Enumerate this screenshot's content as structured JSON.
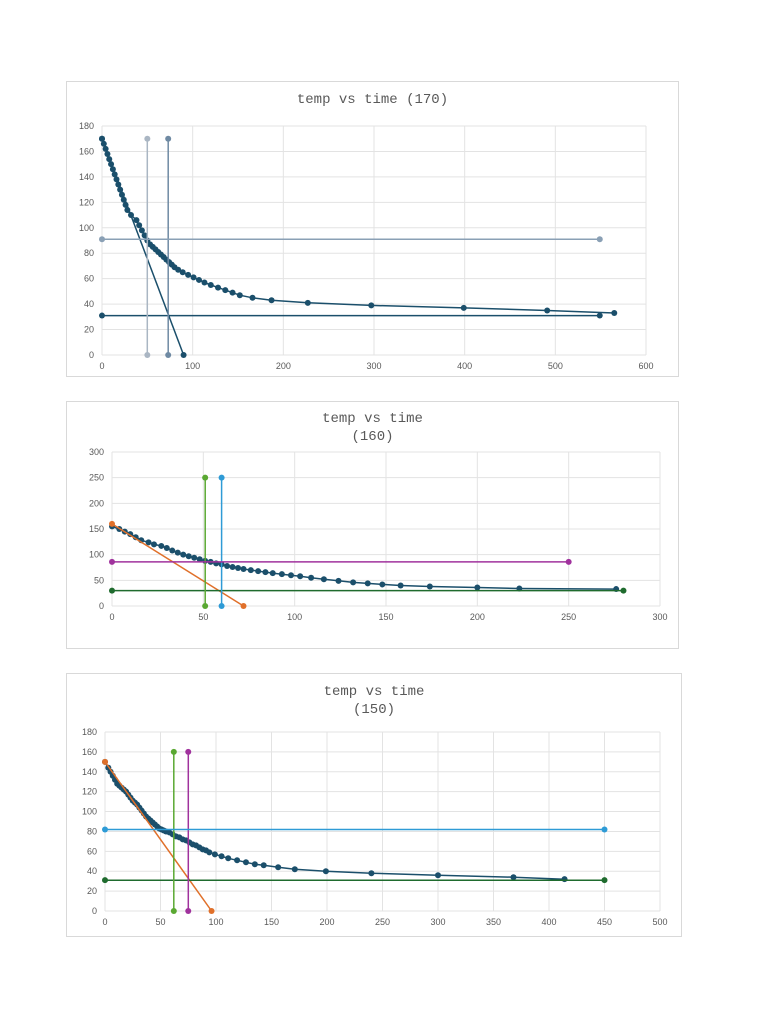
{
  "chart_data": [
    {
      "type": "scatter",
      "title_lines": [
        "temp vs time (170)"
      ],
      "xlim": [
        0,
        600
      ],
      "ylim": [
        0,
        180
      ],
      "xticks": [
        0,
        100,
        200,
        300,
        400,
        500,
        600
      ],
      "yticks": [
        0,
        20,
        40,
        60,
        80,
        100,
        120,
        140,
        160,
        180
      ],
      "grid": true,
      "series": [
        {
          "color": "#1b4f6b",
          "lines": true,
          "points": [
            [
              0,
              170
            ],
            [
              2,
              166
            ],
            [
              4,
              162
            ],
            [
              6,
              158
            ],
            [
              8,
              154
            ],
            [
              10,
              150
            ],
            [
              12,
              146
            ],
            [
              14,
              142
            ],
            [
              16,
              138
            ],
            [
              18,
              134
            ],
            [
              20,
              130
            ],
            [
              22,
              126
            ],
            [
              24,
              122
            ],
            [
              26,
              118
            ],
            [
              28,
              114
            ],
            [
              32,
              110
            ],
            [
              38,
              106
            ],
            [
              41,
              102
            ],
            [
              44,
              98
            ],
            [
              47,
              94
            ],
            [
              50,
              90
            ],
            [
              53,
              87
            ],
            [
              56,
              85
            ],
            [
              59,
              83
            ],
            [
              62,
              81
            ],
            [
              65,
              79
            ],
            [
              68,
              77
            ],
            [
              71,
              75
            ],
            [
              74,
              73
            ],
            [
              77,
              71
            ],
            [
              80,
              69
            ],
            [
              84,
              67
            ],
            [
              89,
              65
            ],
            [
              95,
              63
            ],
            [
              101,
              61
            ],
            [
              107,
              59
            ],
            [
              113,
              57
            ],
            [
              120,
              55
            ],
            [
              128,
              53
            ],
            [
              136,
              51
            ],
            [
              144,
              49
            ],
            [
              152,
              47
            ],
            [
              166,
              45
            ],
            [
              187,
              43
            ],
            [
              227,
              41
            ],
            [
              297,
              39
            ],
            [
              399,
              37
            ],
            [
              491,
              35
            ],
            [
              565,
              33
            ]
          ]
        },
        {
          "color": "#1b4f6b",
          "lines": true,
          "points": [
            [
              0,
              170
            ],
            [
              90,
              0
            ]
          ]
        },
        {
          "color": "#1b4f6b",
          "lines": true,
          "points": [
            [
              0,
              31
            ],
            [
              549,
              31
            ]
          ]
        },
        {
          "color": "#aab6c3",
          "lines": true,
          "points": [
            [
              50,
              170
            ],
            [
              50,
              0
            ]
          ]
        },
        {
          "color": "#6f8aa3",
          "lines": true,
          "points": [
            [
              73,
              170
            ],
            [
              73,
              0
            ]
          ]
        },
        {
          "color": "#8aa0b5",
          "lines": true,
          "points": [
            [
              0,
              91
            ],
            [
              549,
              91
            ]
          ]
        }
      ]
    },
    {
      "type": "scatter",
      "title_lines": [
        "temp vs time",
        "(160)"
      ],
      "xlim": [
        0,
        300
      ],
      "ylim": [
        0,
        300
      ],
      "xticks": [
        0,
        50,
        100,
        150,
        200,
        250,
        300
      ],
      "yticks": [
        0,
        50,
        100,
        150,
        200,
        250,
        300
      ],
      "grid": true,
      "series": [
        {
          "color": "#1b4f6b",
          "lines": true,
          "points": [
            [
              0,
              155
            ],
            [
              4,
              150
            ],
            [
              7,
              145
            ],
            [
              10,
              140
            ],
            [
              13,
              134
            ],
            [
              16,
              128
            ],
            [
              20,
              124
            ],
            [
              23,
              120
            ],
            [
              27,
              117
            ],
            [
              30,
              113
            ],
            [
              33,
              108
            ],
            [
              36,
              104
            ],
            [
              39,
              100
            ],
            [
              42,
              97
            ],
            [
              45,
              94
            ],
            [
              48,
              91
            ],
            [
              51,
              88
            ],
            [
              54,
              86
            ],
            [
              57,
              83
            ],
            [
              60,
              81
            ],
            [
              63,
              78
            ],
            [
              66,
              76
            ],
            [
              69,
              74
            ],
            [
              72,
              72
            ],
            [
              76,
              70
            ],
            [
              80,
              68
            ],
            [
              84,
              66
            ],
            [
              88,
              64
            ],
            [
              93,
              62
            ],
            [
              98,
              60
            ],
            [
              103,
              58
            ],
            [
              109,
              55
            ],
            [
              116,
              52
            ],
            [
              124,
              49
            ],
            [
              132,
              46
            ],
            [
              140,
              44
            ],
            [
              148,
              42
            ],
            [
              158,
              40
            ],
            [
              174,
              38
            ],
            [
              200,
              36
            ],
            [
              223,
              34
            ],
            [
              276,
              33
            ]
          ]
        },
        {
          "color": "#e0702a",
          "lines": true,
          "points": [
            [
              0,
              160
            ],
            [
              72,
              0
            ]
          ]
        },
        {
          "color": "#1f6b2e",
          "lines": true,
          "points": [
            [
              0,
              30
            ],
            [
              280,
              30
            ]
          ]
        },
        {
          "color": "#5aa832",
          "lines": true,
          "points": [
            [
              51,
              250
            ],
            [
              51,
              0
            ]
          ]
        },
        {
          "color": "#2e9bd6",
          "lines": true,
          "points": [
            [
              60,
              250
            ],
            [
              60,
              0
            ]
          ]
        },
        {
          "color": "#a0329d",
          "lines": true,
          "points": [
            [
              0,
              86
            ],
            [
              250,
              86
            ]
          ]
        }
      ]
    },
    {
      "type": "scatter",
      "title_lines": [
        "temp vs time",
        "(150)"
      ],
      "xlim": [
        0,
        500
      ],
      "ylim": [
        0,
        180
      ],
      "xticks": [
        0,
        50,
        100,
        150,
        200,
        250,
        300,
        350,
        400,
        450,
        500
      ],
      "yticks": [
        0,
        20,
        40,
        60,
        80,
        100,
        120,
        140,
        160,
        180
      ],
      "grid": true,
      "series": [
        {
          "color": "#1b4f6b",
          "lines": true,
          "points": [
            [
              0,
              150
            ],
            [
              3,
              144
            ],
            [
              5,
              140
            ],
            [
              7,
              136
            ],
            [
              9,
              132
            ],
            [
              11,
              128
            ],
            [
              13,
              126
            ],
            [
              15,
              124
            ],
            [
              17,
              122
            ],
            [
              19,
              120
            ],
            [
              21,
              117
            ],
            [
              23,
              114
            ],
            [
              25,
              111
            ],
            [
              27,
              109
            ],
            [
              29,
              107
            ],
            [
              31,
              104
            ],
            [
              33,
              101
            ],
            [
              35,
              98
            ],
            [
              37,
              95
            ],
            [
              39,
              93
            ],
            [
              41,
              91
            ],
            [
              43,
              89
            ],
            [
              45,
              87
            ],
            [
              47,
              85
            ],
            [
              49,
              83
            ],
            [
              51,
              82
            ],
            [
              53,
              81
            ],
            [
              55,
              80
            ],
            [
              58,
              79
            ],
            [
              61,
              77
            ],
            [
              64,
              75
            ],
            [
              67,
              74
            ],
            [
              70,
              72
            ],
            [
              73,
              71
            ],
            [
              76,
              69
            ],
            [
              79,
              67
            ],
            [
              82,
              66
            ],
            [
              85,
              64
            ],
            [
              88,
              62
            ],
            [
              91,
              61
            ],
            [
              94,
              59
            ],
            [
              99,
              57
            ],
            [
              105,
              55
            ],
            [
              111,
              53
            ],
            [
              119,
              51
            ],
            [
              127,
              49
            ],
            [
              135,
              47
            ],
            [
              143,
              46
            ],
            [
              156,
              44
            ],
            [
              171,
              42
            ],
            [
              199,
              40
            ],
            [
              240,
              38
            ],
            [
              300,
              36
            ],
            [
              368,
              34
            ],
            [
              414,
              32
            ]
          ]
        },
        {
          "color": "#e0702a",
          "lines": true,
          "points": [
            [
              0,
              150
            ],
            [
              96,
              0
            ]
          ]
        },
        {
          "color": "#1f6b2e",
          "lines": true,
          "points": [
            [
              0,
              31
            ],
            [
              450,
              31
            ]
          ]
        },
        {
          "color": "#5aa832",
          "lines": true,
          "points": [
            [
              62,
              160
            ],
            [
              62,
              0
            ]
          ]
        },
        {
          "color": "#a0329d",
          "lines": true,
          "points": [
            [
              75,
              160
            ],
            [
              75,
              0
            ]
          ]
        },
        {
          "color": "#2e9bd6",
          "lines": true,
          "points": [
            [
              0,
              82
            ],
            [
              450,
              82
            ]
          ]
        }
      ]
    }
  ]
}
